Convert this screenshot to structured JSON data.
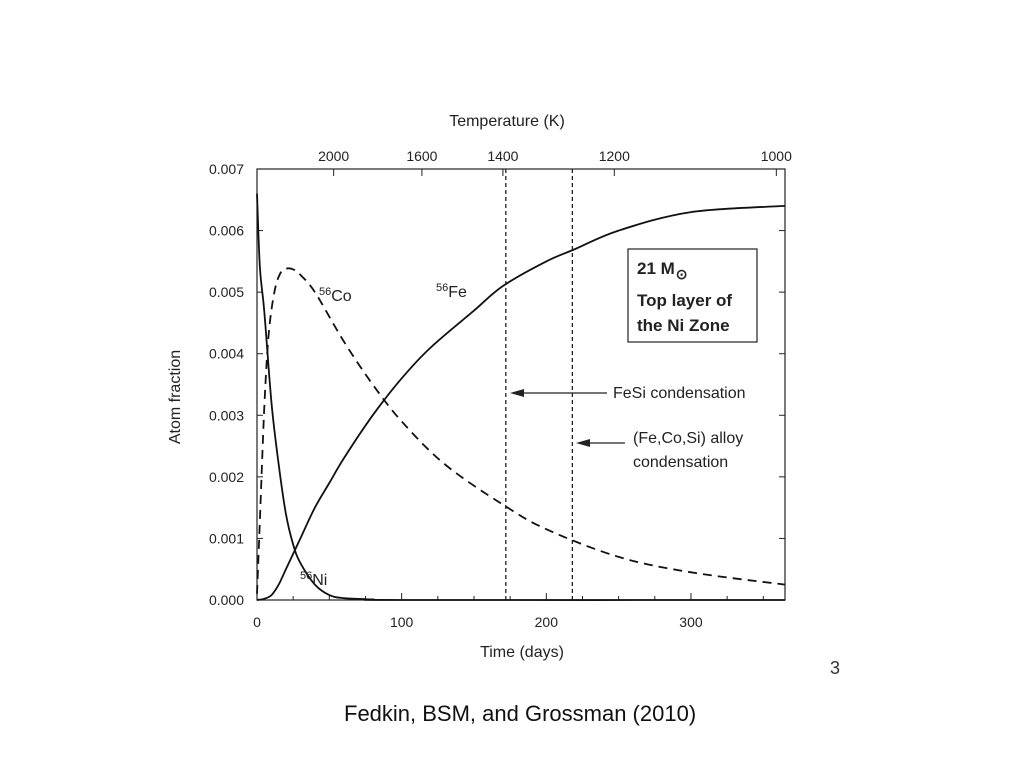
{
  "chart_data": {
    "type": "line",
    "xlabel": "Time (days)",
    "ylabel": "Atom fraction",
    "top_axis_label": "Temperature (K)",
    "xlim": [
      0,
      365
    ],
    "ylim": [
      0,
      0.007
    ],
    "x_ticks": [
      0,
      100,
      200,
      300
    ],
    "y_ticks": [
      0.0,
      0.001,
      0.002,
      0.003,
      0.004,
      0.005,
      0.006,
      0.007
    ],
    "y_tick_labels": [
      "0.000",
      "0.001",
      "0.002",
      "0.003",
      "0.004",
      "0.005",
      "0.006",
      "0.007"
    ],
    "top_axis_ticks": [
      {
        "label": "2000",
        "x": 53
      },
      {
        "label": "1600",
        "x": 114
      },
      {
        "label": "1400",
        "x": 170
      },
      {
        "label": "1200",
        "x": 247
      },
      {
        "label": "1000",
        "x": 359
      }
    ],
    "series": [
      {
        "name": "56Ni",
        "label_mass": "56",
        "label_element": "Ni",
        "style": "solid",
        "x": [
          0,
          2,
          5,
          10,
          15,
          20,
          25,
          30,
          40,
          50,
          60,
          80,
          100,
          365
        ],
        "y": [
          0.0066,
          0.0054,
          0.0047,
          0.0032,
          0.0022,
          0.0014,
          0.0009,
          0.0006,
          0.00025,
          8e-05,
          3e-05,
          1e-05,
          0.0,
          0.0
        ]
      },
      {
        "name": "56Co",
        "label_mass": "56",
        "label_element": "Co",
        "style": "dashed",
        "x": [
          0,
          2,
          5,
          8,
          12,
          16,
          20,
          25,
          30,
          40,
          60,
          80,
          100,
          130,
          170,
          200,
          250,
          300,
          365
        ],
        "y": [
          0.0001,
          0.0013,
          0.0031,
          0.0043,
          0.005,
          0.0053,
          0.00538,
          0.00537,
          0.00528,
          0.005,
          0.0042,
          0.0035,
          0.0029,
          0.0022,
          0.00155,
          0.00115,
          0.0007,
          0.00045,
          0.00025
        ]
      },
      {
        "name": "56Fe",
        "label_mass": "56",
        "label_element": "Fe",
        "style": "solid",
        "x": [
          0,
          5,
          10,
          15,
          20,
          30,
          40,
          50,
          60,
          80,
          100,
          120,
          150,
          170,
          200,
          220,
          250,
          300,
          365
        ],
        "y": [
          0.0,
          2e-05,
          8e-05,
          0.00025,
          0.0005,
          0.001,
          0.0015,
          0.0019,
          0.0023,
          0.003,
          0.0036,
          0.0041,
          0.0047,
          0.0051,
          0.0055,
          0.0057,
          0.006,
          0.0063,
          0.0064
        ]
      }
    ],
    "vlines": [
      {
        "x": 172,
        "style": "dashed",
        "label": "FeSi condensation"
      },
      {
        "x": 218,
        "style": "dashed",
        "label_lines": [
          "(Fe,Co,Si) alloy",
          "condensation"
        ]
      }
    ],
    "legend_box": {
      "line1_prefix": "21 M",
      "line1_symbol": "⊙",
      "line2": "Top layer of",
      "line3": "the Ni Zone",
      "placement": "top-right"
    },
    "grid": false
  },
  "slide": {
    "number": "3",
    "citation": "Fedkin, BSM, and Grossman (2010)"
  }
}
